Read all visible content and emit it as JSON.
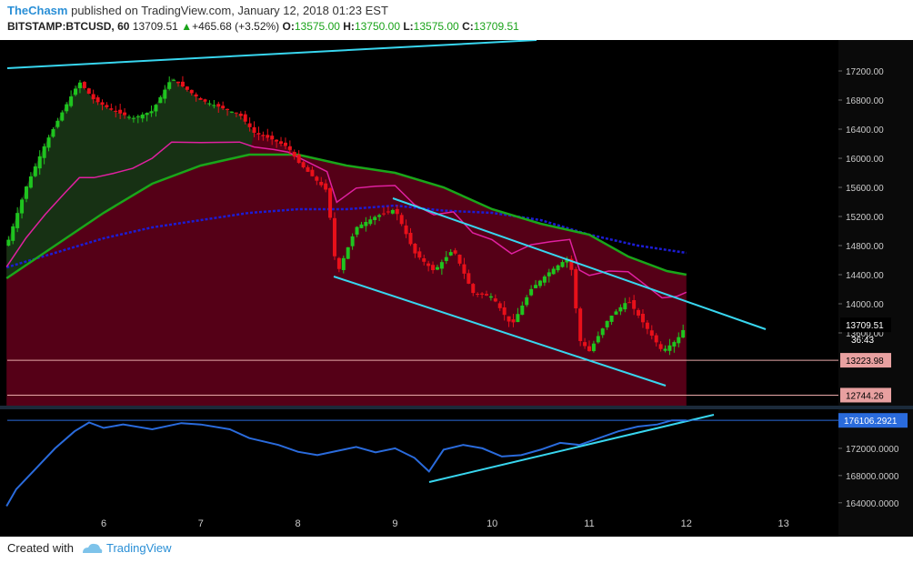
{
  "header": {
    "author": "TheChasm",
    "published_text": "published on TradingView.com, January 12, 2018 01:23 EST",
    "symbol": "BITSTAMP:BTCUSD, 60",
    "last": "13709.51",
    "change_arrow": "▲",
    "change": "+465.68 (+3.52%)",
    "o_label": "O:",
    "o_val": "13575.00",
    "h_label": "H:",
    "h_val": "13750.00",
    "l_label": "L:",
    "l_val": "13575.00",
    "c_label": "C:",
    "c_val": "13709.51"
  },
  "footer": {
    "created_with": "Created with",
    "brand": "TradingView"
  },
  "colors": {
    "background": "#000000",
    "bull": "#1fc41f",
    "bear": "#e8101a",
    "cloud": "#5a0018",
    "ema_green": "#1aa61a",
    "sma_blue": "#1c1cd6",
    "magenta": "#e020a0",
    "trendline": "#38d6ef",
    "indicator": "#2a6bdc",
    "price_tag": "#e8a0a0"
  },
  "chart_data": {
    "type": "candlestick",
    "x_tick_labels": [
      "6",
      "7",
      "8",
      "9",
      "10",
      "11",
      "12",
      "13"
    ],
    "price_axis": {
      "ticks": [
        "17200.00",
        "16800.00",
        "16400.00",
        "16000.00",
        "15600.00",
        "15200.00",
        "14800.00",
        "14400.00",
        "14000.00",
        "13600.00"
      ],
      "range": [
        12600,
        17500
      ]
    },
    "price_labels": {
      "last": "13709.51",
      "countdown": "36:43",
      "level_1": "13223.98",
      "level_2": "12744.26"
    },
    "horizontal_levels": [
      13223.98,
      12744.26
    ],
    "candle_path_points": [
      [
        5.0,
        14800
      ],
      [
        5.2,
        15600
      ],
      [
        5.4,
        16200
      ],
      [
        5.6,
        16700
      ],
      [
        5.75,
        17050
      ],
      [
        5.9,
        16800
      ],
      [
        6.1,
        16650
      ],
      [
        6.3,
        16550
      ],
      [
        6.5,
        16650
      ],
      [
        6.7,
        17100
      ],
      [
        6.85,
        16950
      ],
      [
        7.0,
        16800
      ],
      [
        7.2,
        16700
      ],
      [
        7.4,
        16600
      ],
      [
        7.55,
        16350
      ],
      [
        7.75,
        16250
      ],
      [
        7.9,
        16150
      ],
      [
        8.0,
        15950
      ],
      [
        8.15,
        15750
      ],
      [
        8.3,
        15550
      ],
      [
        8.4,
        14400
      ],
      [
        8.6,
        15050
      ],
      [
        8.8,
        15200
      ],
      [
        9.0,
        15300
      ],
      [
        9.2,
        14700
      ],
      [
        9.4,
        14450
      ],
      [
        9.6,
        14750
      ],
      [
        9.8,
        14150
      ],
      [
        10.0,
        14100
      ],
      [
        10.2,
        13700
      ],
      [
        10.4,
        14200
      ],
      [
        10.6,
        14450
      ],
      [
        10.8,
        14650
      ],
      [
        10.9,
        13500
      ],
      [
        11.0,
        13350
      ],
      [
        11.2,
        13800
      ],
      [
        11.4,
        14050
      ],
      [
        11.6,
        13650
      ],
      [
        11.75,
        13350
      ],
      [
        11.9,
        13500
      ],
      [
        12.0,
        13709.51
      ]
    ],
    "ema_green": [
      [
        5.0,
        14350
      ],
      [
        5.5,
        14800
      ],
      [
        6.0,
        15250
      ],
      [
        6.5,
        15650
      ],
      [
        7.0,
        15900
      ],
      [
        7.5,
        16050
      ],
      [
        8.0,
        16050
      ],
      [
        8.5,
        15900
      ],
      [
        9.0,
        15800
      ],
      [
        9.5,
        15600
      ],
      [
        10.0,
        15300
      ],
      [
        10.5,
        15100
      ],
      [
        11.0,
        14950
      ],
      [
        11.4,
        14650
      ],
      [
        11.8,
        14450
      ],
      [
        12.0,
        14400
      ]
    ],
    "sma_blue": [
      [
        5.0,
        14500
      ],
      [
        5.5,
        14700
      ],
      [
        6.0,
        14900
      ],
      [
        6.5,
        15050
      ],
      [
        7.0,
        15150
      ],
      [
        7.5,
        15250
      ],
      [
        8.0,
        15300
      ],
      [
        8.5,
        15300
      ],
      [
        9.0,
        15350
      ],
      [
        9.5,
        15280
      ],
      [
        10.0,
        15250
      ],
      [
        10.5,
        15150
      ],
      [
        11.0,
        14950
      ],
      [
        11.5,
        14800
      ],
      [
        12.0,
        14700
      ]
    ],
    "indicator_axis": {
      "ticks": [
        "176000.0000",
        "172000.0000",
        "168000.0000",
        "164000.0000"
      ],
      "last_label": "176106.2921",
      "range": [
        162500,
        177200
      ]
    },
    "indicator_series": [
      [
        5.0,
        163500
      ],
      [
        5.1,
        166000
      ],
      [
        5.3,
        169000
      ],
      [
        5.5,
        172000
      ],
      [
        5.7,
        174500
      ],
      [
        5.85,
        175800
      ],
      [
        6.0,
        175000
      ],
      [
        6.2,
        175500
      ],
      [
        6.5,
        174800
      ],
      [
        6.8,
        175700
      ],
      [
        7.0,
        175500
      ],
      [
        7.3,
        174800
      ],
      [
        7.5,
        173500
      ],
      [
        7.8,
        172500
      ],
      [
        8.0,
        171500
      ],
      [
        8.2,
        171000
      ],
      [
        8.4,
        171600
      ],
      [
        8.6,
        172200
      ],
      [
        8.8,
        171400
      ],
      [
        9.0,
        172000
      ],
      [
        9.2,
        170600
      ],
      [
        9.35,
        168600
      ],
      [
        9.5,
        171800
      ],
      [
        9.7,
        172500
      ],
      [
        9.9,
        172000
      ],
      [
        10.1,
        170800
      ],
      [
        10.3,
        171000
      ],
      [
        10.5,
        171800
      ],
      [
        10.7,
        172800
      ],
      [
        10.9,
        172500
      ],
      [
        11.1,
        173500
      ],
      [
        11.3,
        174500
      ],
      [
        11.5,
        175200
      ],
      [
        11.7,
        175500
      ],
      [
        11.85,
        176106.29
      ],
      [
        12.0,
        176106.29
      ]
    ]
  }
}
